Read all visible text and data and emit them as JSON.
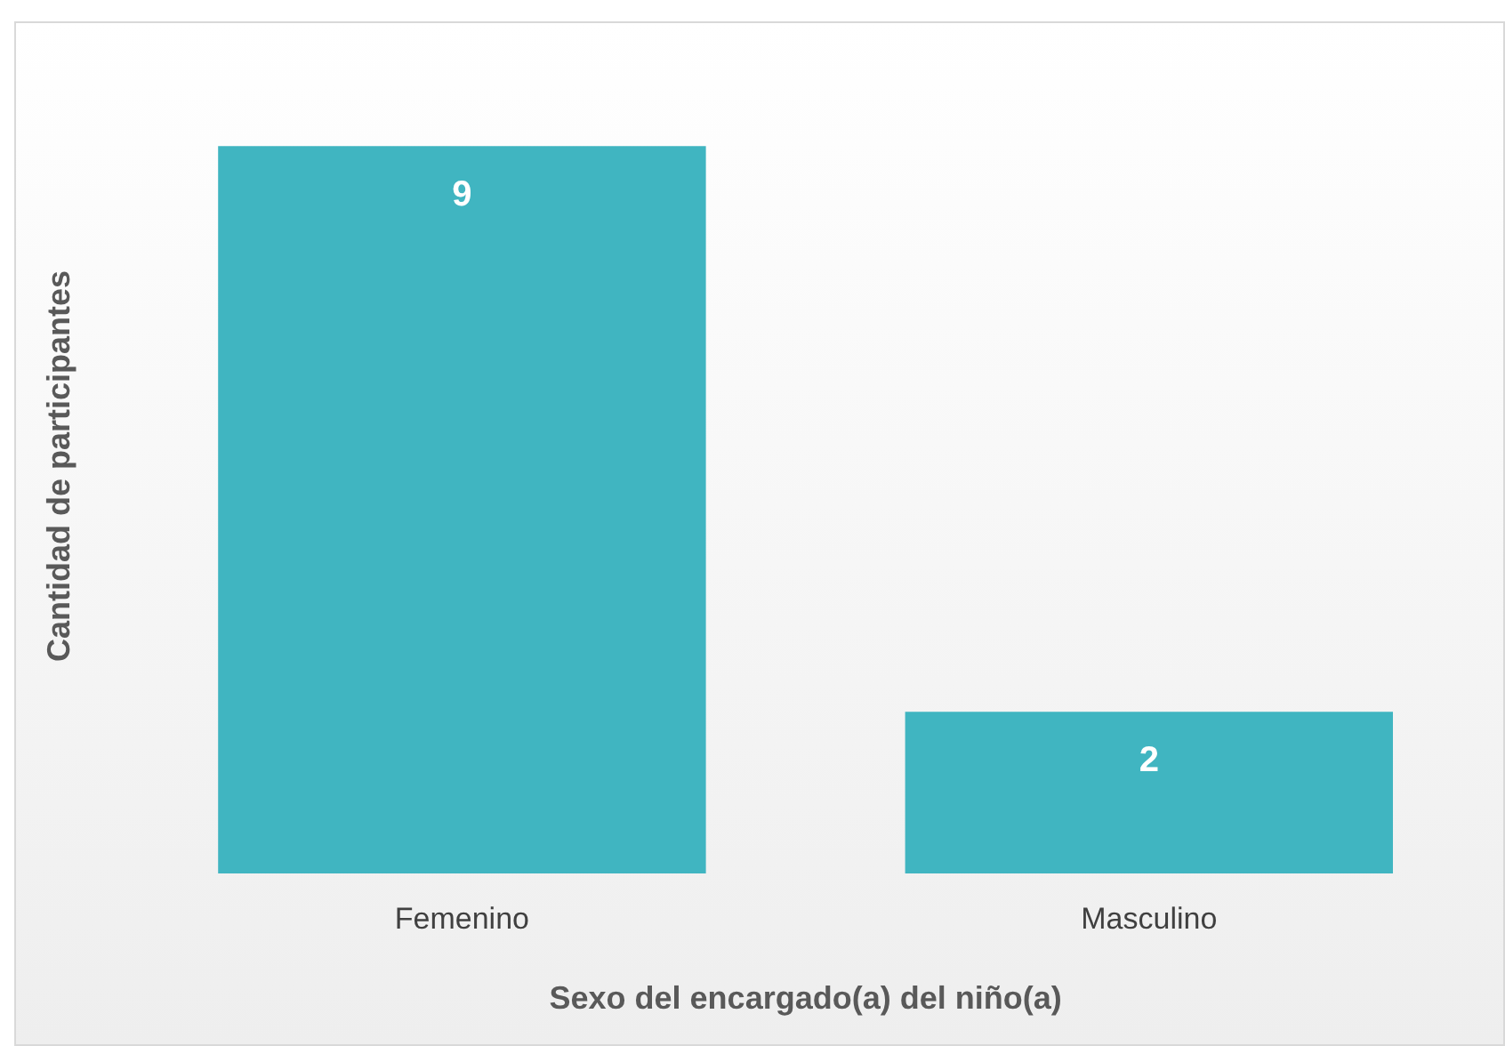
{
  "chart_data": {
    "type": "bar",
    "xlabel": "Sexo del encargado(a) del niño(a)",
    "ylabel": "Cantidad de participantes",
    "categories": [
      "Femenino",
      "Masculino"
    ],
    "values": [
      9,
      2
    ],
    "color": "#40b5c1",
    "data_labels": true,
    "grid": false,
    "legend": false,
    "tick_labels": "x"
  }
}
